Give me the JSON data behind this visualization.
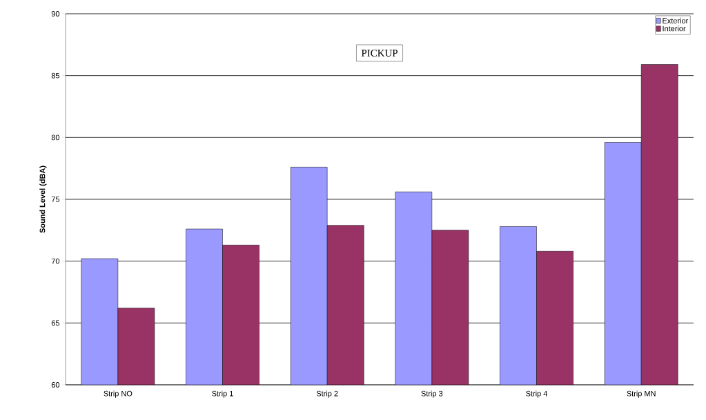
{
  "chart_data": {
    "type": "bar",
    "title": "PICKUP",
    "ylabel": "Sound Level (dBA)",
    "categories": [
      "Strip NO",
      "Strip 1",
      "Strip 2",
      "Strip 3",
      "Strip 4",
      "Strip MN"
    ],
    "series": [
      {
        "name": "Exterior",
        "color": "#9999ff",
        "values": [
          70.2,
          72.6,
          77.6,
          75.6,
          72.8,
          79.6
        ]
      },
      {
        "name": "Interior",
        "color": "#993366",
        "values": [
          66.2,
          71.3,
          72.9,
          72.5,
          70.8,
          85.9
        ]
      }
    ],
    "ylim": [
      60,
      90
    ],
    "yticks": [
      60,
      65,
      70,
      75,
      80,
      85,
      90
    ],
    "grid": "y",
    "legend": "top right"
  }
}
